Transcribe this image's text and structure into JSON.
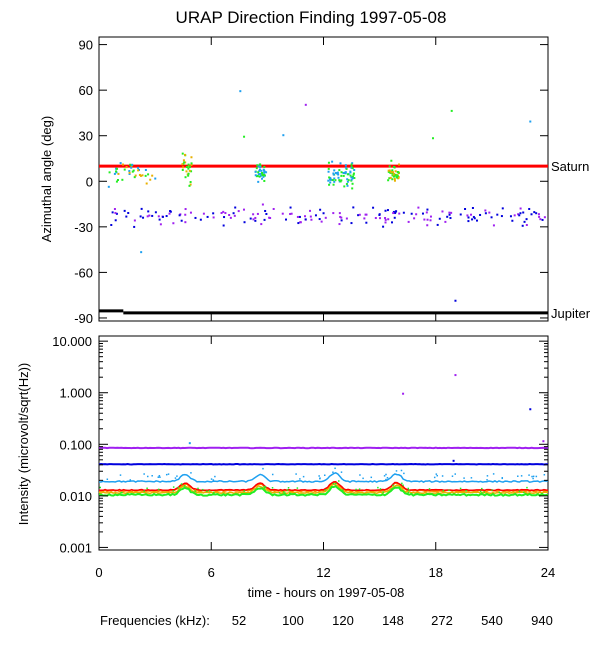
{
  "title": "URAP Direction Finding  1997-05-08",
  "xlabel": "time - hours on 1997-05-08",
  "colors": {
    "52": "#ff0000",
    "100": "#ff8c00",
    "120": "#e8b000",
    "148": "#22ee22",
    "272": "#1ea0f0",
    "540": "#0000dd",
    "940": "#a020f0"
  },
  "legend": {
    "label": "Frequencies (kHz):",
    "entries": [
      {
        "text": "52",
        "color": "#ff0000"
      },
      {
        "text": "100",
        "color": "#ff8c00"
      },
      {
        "text": "120",
        "color": "#e8b000"
      },
      {
        "text": "148",
        "color": "#22ee22"
      },
      {
        "text": "272",
        "color": "#1ea0f0"
      },
      {
        "text": "540",
        "color": "#0000dd"
      },
      {
        "text": "940",
        "color": "#a020f0"
      }
    ]
  },
  "chart_data": [
    {
      "type": "scatter",
      "ylabel": "Azimuthal angle (deg)",
      "xlim": [
        0,
        24
      ],
      "ylim": [
        -92,
        95
      ],
      "xticks": [
        0,
        6,
        12,
        18,
        24
      ],
      "yticks": [
        90,
        60,
        30,
        0,
        -30,
        -60,
        -90
      ],
      "reference_lines": [
        {
          "name": "Saturn",
          "y": 10,
          "color": "#ff0000"
        },
        {
          "name": "Jupiter",
          "y": -86,
          "color": "#000000"
        }
      ],
      "clusters": [
        {
          "freq": "148/120/272",
          "x_range": [
            0.2,
            3.0
          ],
          "y_center": 6,
          "y_spread": 8,
          "count": 40
        },
        {
          "freq": "148/120",
          "x_range": [
            4.4,
            4.9
          ],
          "y_center": 8,
          "y_spread": 10,
          "count": 30
        },
        {
          "freq": "272/148",
          "x_range": [
            8.3,
            8.9
          ],
          "y_center": 7,
          "y_spread": 6,
          "count": 40
        },
        {
          "freq": "148/272",
          "x_range": [
            12.2,
            13.6
          ],
          "y_center": 5,
          "y_spread": 8,
          "count": 70
        },
        {
          "freq": "148/120",
          "x_range": [
            15.4,
            16.0
          ],
          "y_center": 5,
          "y_spread": 7,
          "count": 40
        },
        {
          "freq": "540/940",
          "x_range": [
            0.5,
            23.9
          ],
          "y_center": -22,
          "y_spread": 6,
          "count": 190
        }
      ],
      "outliers": [
        {
          "x": 7.5,
          "y": 60,
          "freq": "272"
        },
        {
          "x": 11.0,
          "y": 51,
          "freq": "940"
        },
        {
          "x": 9.8,
          "y": 31,
          "freq": "272"
        },
        {
          "x": 7.7,
          "y": 30,
          "freq": "148"
        },
        {
          "x": 18.8,
          "y": 47,
          "freq": "148"
        },
        {
          "x": 17.8,
          "y": 29,
          "freq": "148"
        },
        {
          "x": 23.0,
          "y": 40,
          "freq": "272"
        },
        {
          "x": 2.2,
          "y": -46,
          "freq": "272"
        },
        {
          "x": 19.0,
          "y": -78,
          "freq": "540"
        }
      ]
    },
    {
      "type": "line",
      "ylabel": "Intensity (microvolt/sqrt(Hz))",
      "xlim": [
        0,
        24
      ],
      "ylim_log10": [
        -3.05,
        1.1
      ],
      "yscale": "log",
      "xticks": [
        0,
        6,
        12,
        18,
        24
      ],
      "yticks": [
        10,
        1,
        0.1,
        0.01,
        0.001
      ],
      "ytick_labels": [
        "10.000",
        "1.000",
        "0.100",
        "0.010",
        "0.001"
      ],
      "series": [
        {
          "freq": "940",
          "color": "#a020f0",
          "base": 0.085,
          "noise": 0.01
        },
        {
          "freq": "540",
          "color": "#0000dd",
          "base": 0.041,
          "noise": 0.01
        },
        {
          "freq": "272",
          "color": "#1ea0f0",
          "base": 0.019,
          "noise": 0.03
        },
        {
          "freq": "100",
          "color": "#ff8c00",
          "base": 0.0125,
          "noise": 0.03
        },
        {
          "freq": "52",
          "color": "#ff0000",
          "base": 0.013,
          "noise": 0.02
        },
        {
          "freq": "120",
          "color": "#e8b000",
          "base": 0.0115,
          "noise": 0.03
        },
        {
          "freq": "148",
          "color": "#22ee22",
          "base": 0.0105,
          "noise": 0.04
        }
      ],
      "bumps": [
        {
          "x": 4.6,
          "factor": 1.35
        },
        {
          "x": 8.6,
          "factor": 1.35
        },
        {
          "x": 12.6,
          "factor": 1.45
        },
        {
          "x": 15.9,
          "factor": 1.4
        }
      ],
      "outliers": [
        {
          "x": 16.2,
          "y": 1.0,
          "freq": "940"
        },
        {
          "x": 19.0,
          "y": 2.3,
          "freq": "940"
        },
        {
          "x": 23.0,
          "y": 0.5,
          "freq": "540"
        },
        {
          "x": 23.7,
          "y": 0.12,
          "freq": "940"
        },
        {
          "x": 4.8,
          "y": 0.11,
          "freq": "272"
        },
        {
          "x": 18.9,
          "y": 0.05,
          "freq": "540"
        }
      ]
    }
  ]
}
